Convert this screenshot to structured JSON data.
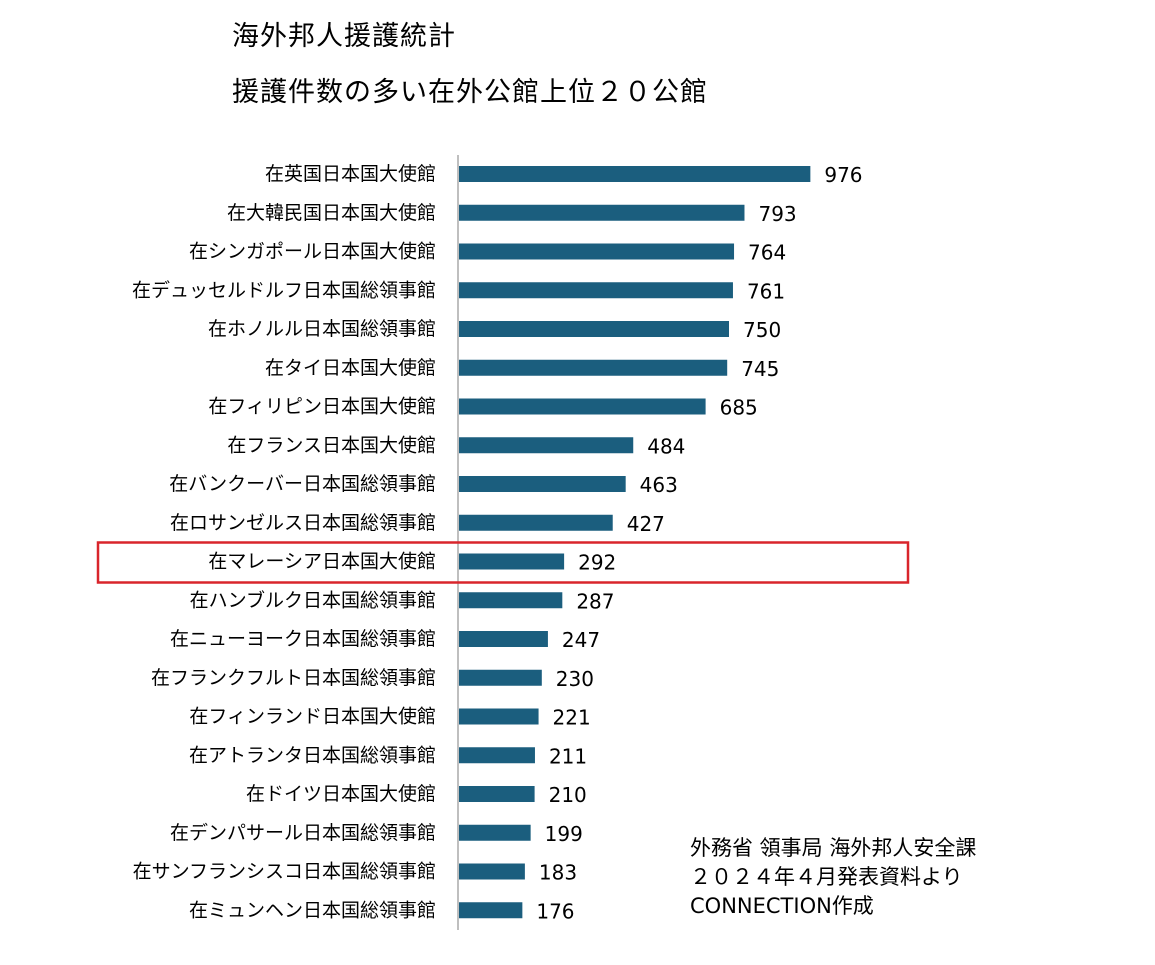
{
  "title": "海外邦人援護統計",
  "subtitle": "援護件数の多い在外公館上位２０公館",
  "chart_data": {
    "type": "bar",
    "orientation": "horizontal",
    "categories": [
      "在英国日本国大使館",
      "在大韓民国日本国大使館",
      "在シンガポール日本国大使館",
      "在デュッセルドルフ日本国総領事館",
      "在ホノルル日本国総領事館",
      "在タイ日本国大使館",
      "在フィリピン日本国大使館",
      "在フランス日本国大使館",
      "在バンクーバー日本国総領事館",
      "在ロサンゼルス日本国総領事館",
      "在マレーシア日本国大使館",
      "在ハンブルク日本国総領事館",
      "在ニューヨーク日本国総領事館",
      "在フランクフルト日本国総領事館",
      "在フィンランド日本国大使館",
      "在アトランタ日本国総領事館",
      "在ドイツ日本国大使館",
      "在デンパサール日本国総領事館",
      "在サンフランシスコ日本国総領事館",
      "在ミュンヘン日本国総領事館"
    ],
    "values": [
      976,
      793,
      764,
      761,
      750,
      745,
      685,
      484,
      463,
      427,
      292,
      287,
      247,
      230,
      221,
      211,
      210,
      199,
      183,
      176
    ],
    "highlighted_category": "在マレーシア日本国大使館",
    "xlim": [
      0,
      1000
    ],
    "grid": false,
    "legend": "none",
    "bar_color": "#1b5e7e",
    "highlight_color": "#d9252b",
    "axis_color": "#bfbfbf"
  },
  "source": {
    "line1": "外務省 領事局 海外邦人安全課",
    "line2": "２０２４年４月発表資料より",
    "line3": "CONNECTION作成"
  }
}
